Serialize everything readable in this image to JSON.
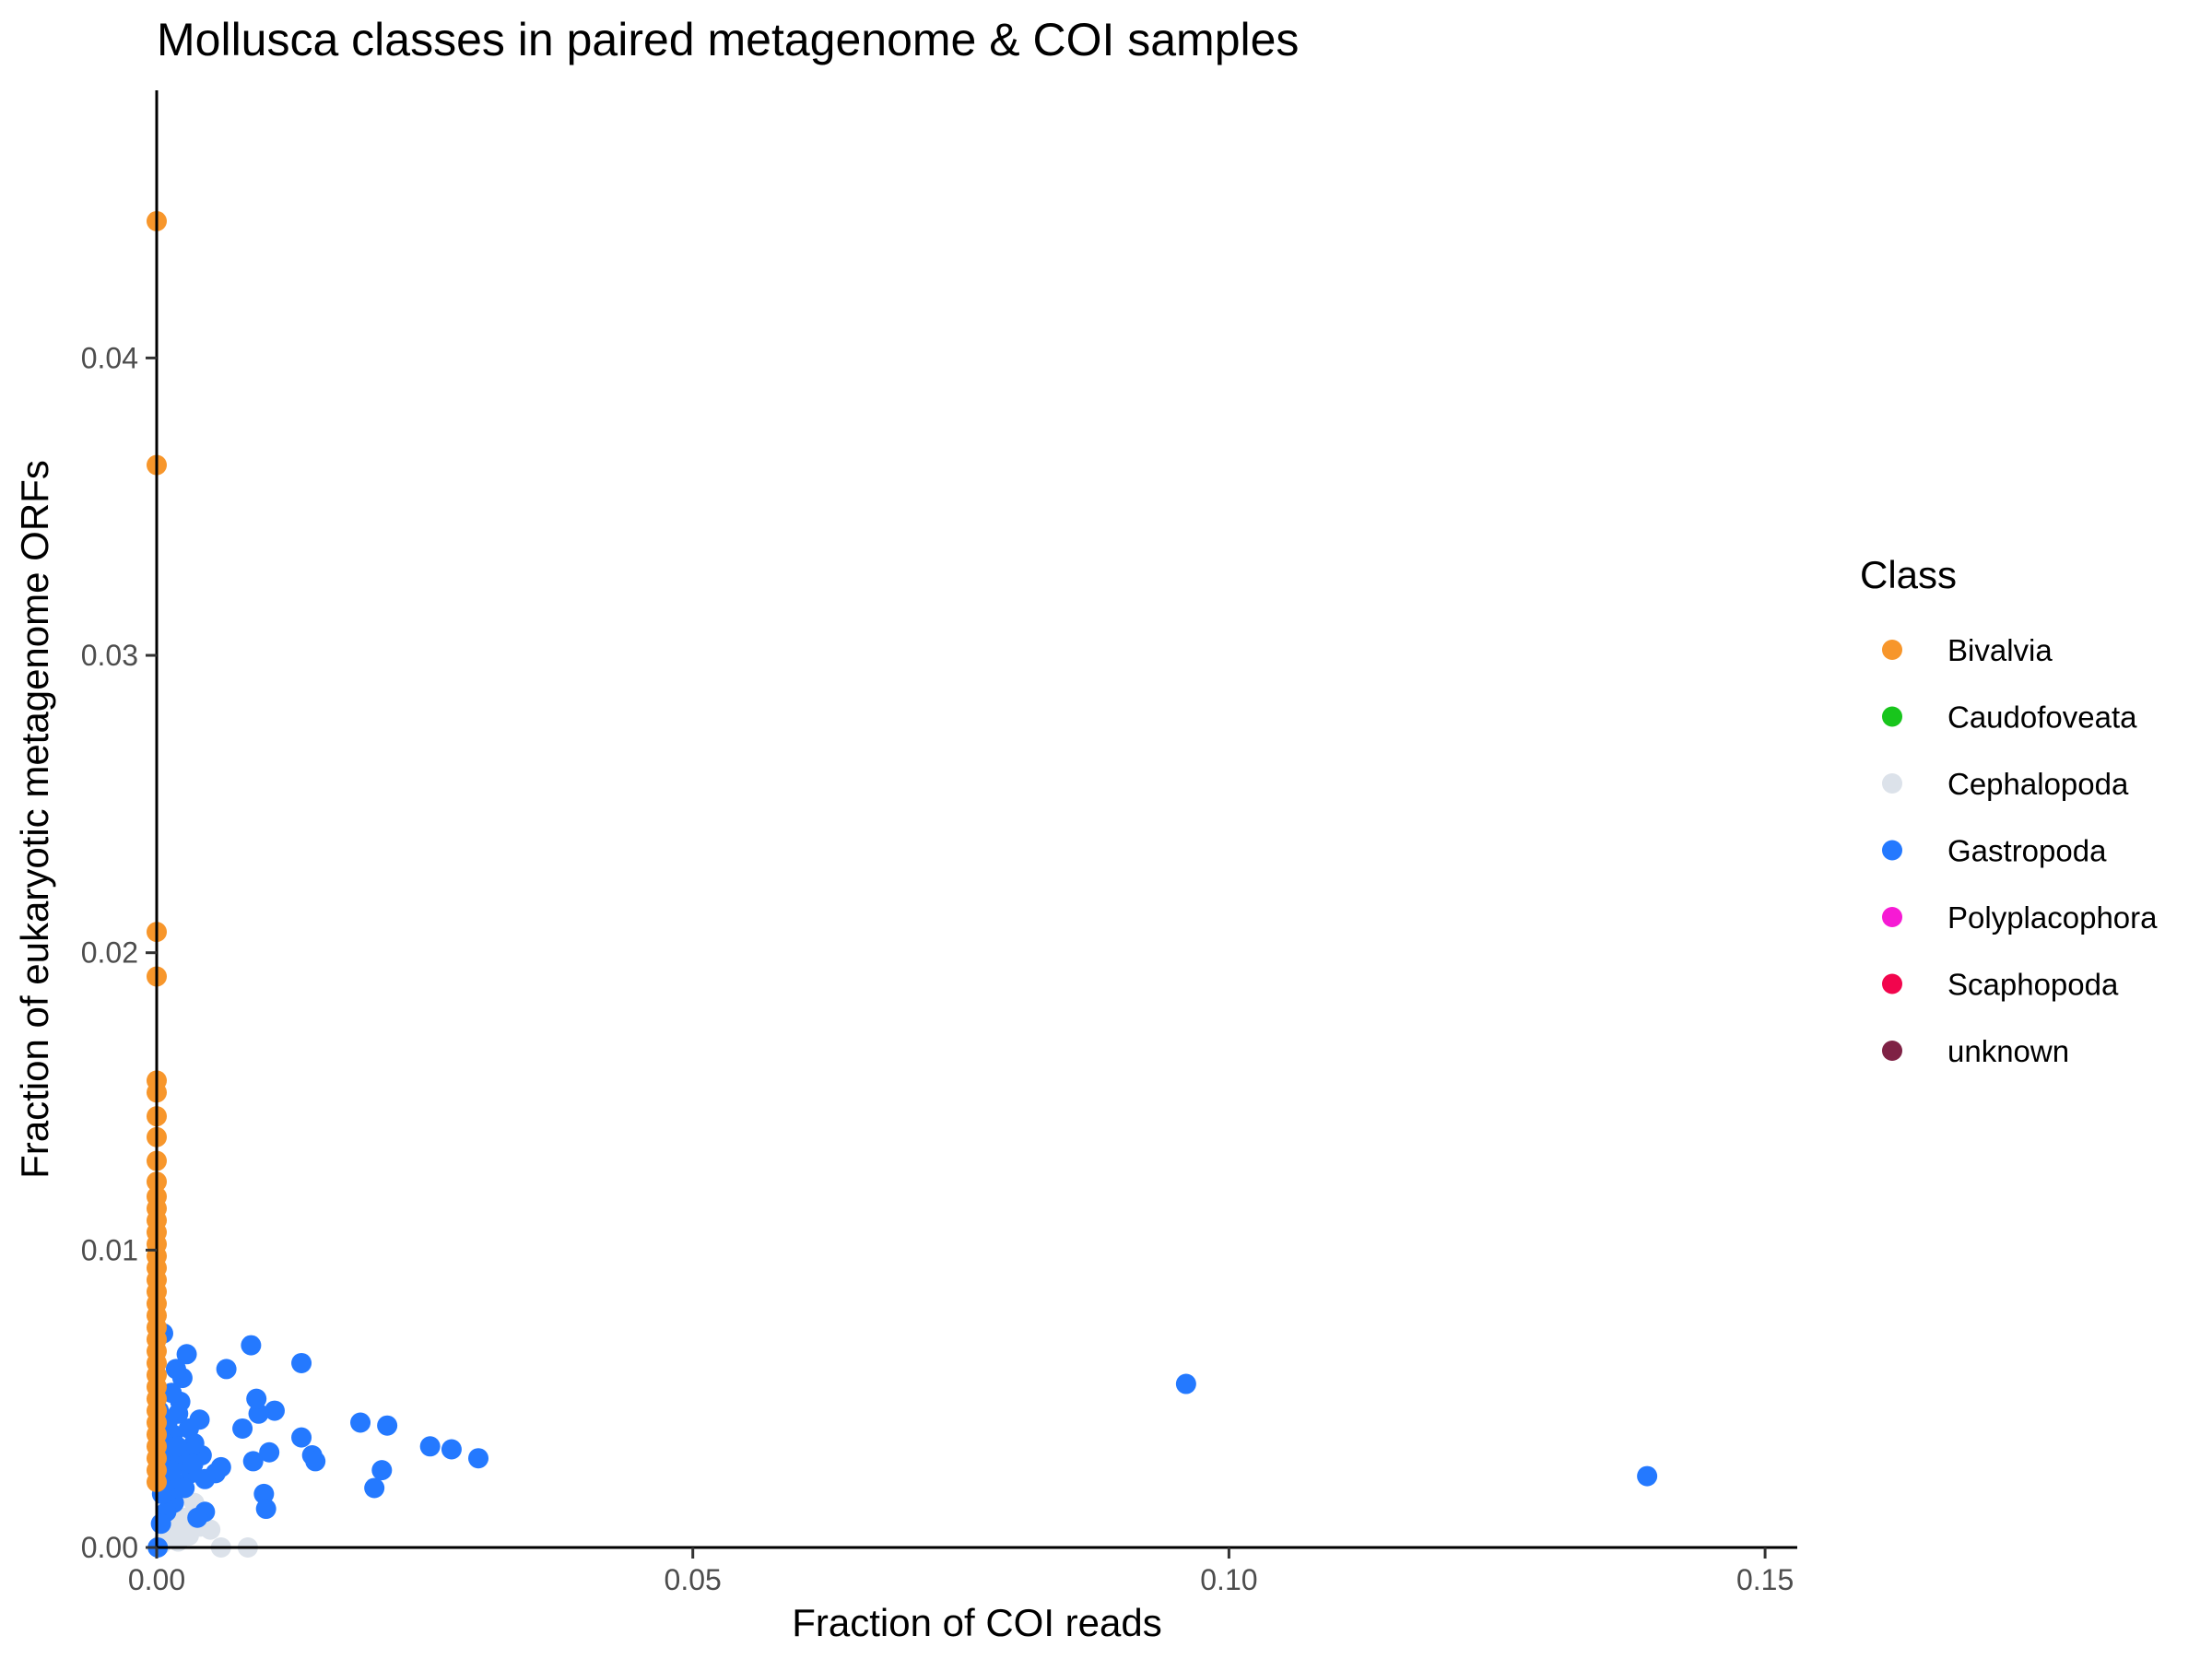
{
  "chart_data": {
    "type": "scatter",
    "title": "Mollusca classes in paired metagenome & COI samples",
    "xlabel": "Fraction of COI reads",
    "ylabel": "Fraction of eukaryotic metagenome ORFs",
    "xlim": [
      0,
      0.153
    ],
    "ylim": [
      0,
      0.049
    ],
    "x_ticks": [
      "0.00",
      "0.05",
      "0.10",
      "0.15"
    ],
    "y_ticks": [
      "0.00",
      "0.01",
      "0.02",
      "0.03",
      "0.04"
    ],
    "grid": false,
    "legend": {
      "title": "Class",
      "placement": "right",
      "entries": [
        {
          "name": "Bivalvia",
          "color": "#F7962B"
        },
        {
          "name": "Caudofoveata",
          "color": "#18C51C"
        },
        {
          "name": "Cephalopoda",
          "color": "#DCE2EA"
        },
        {
          "name": "Gastropoda",
          "color": "#2479FF"
        },
        {
          "name": "Polyplacophora",
          "color": "#F61AD4"
        },
        {
          "name": "Scaphopoda",
          "color": "#F2054D"
        },
        {
          "name": "unknown",
          "color": "#7F2245"
        }
      ]
    },
    "series": [
      {
        "name": "Cephalopoda",
        "points": [
          [
            0.0004,
            0.0001
          ],
          [
            0.001,
            0.0003
          ],
          [
            0.0015,
            0.0006
          ],
          [
            0.002,
            0.0002
          ],
          [
            0.0025,
            0.001
          ],
          [
            0.003,
            0.0004
          ],
          [
            0.0035,
            0.0015
          ],
          [
            0.004,
            0.0007
          ],
          [
            0.005,
            0.0006
          ],
          [
            0.006,
            0.0
          ],
          [
            0.0085,
            0.0
          ],
          [
            0.0012,
            0.0012
          ],
          [
            0.0022,
            0.0018
          ],
          [
            0.0008,
            0.0005
          ]
        ]
      },
      {
        "name": "Gastropoda",
        "points": [
          [
            0.139,
            0.0024
          ],
          [
            0.096,
            0.0055
          ],
          [
            0.03,
            0.003
          ],
          [
            0.0275,
            0.0033
          ],
          [
            0.0255,
            0.0034
          ],
          [
            0.0215,
            0.0041
          ],
          [
            0.021,
            0.0026
          ],
          [
            0.019,
            0.0042
          ],
          [
            0.0203,
            0.002
          ],
          [
            0.0145,
            0.0031
          ],
          [
            0.0148,
            0.0029
          ],
          [
            0.0135,
            0.0037
          ],
          [
            0.0135,
            0.0062
          ],
          [
            0.011,
            0.0046
          ],
          [
            0.0105,
            0.0032
          ],
          [
            0.01,
            0.0018
          ],
          [
            0.0102,
            0.0013
          ],
          [
            0.0095,
            0.0045
          ],
          [
            0.0093,
            0.005
          ],
          [
            0.0088,
            0.0068
          ],
          [
            0.009,
            0.0029
          ],
          [
            0.008,
            0.004
          ],
          [
            0.0065,
            0.006
          ],
          [
            0.006,
            0.0027
          ],
          [
            0.0055,
            0.0025
          ],
          [
            0.0045,
            0.0023
          ],
          [
            0.0045,
            0.0012
          ],
          [
            0.0042,
            0.0031
          ],
          [
            0.004,
            0.0043
          ],
          [
            0.0038,
            0.001
          ],
          [
            0.0035,
            0.0035
          ],
          [
            0.0032,
            0.0025
          ],
          [
            0.003,
            0.004
          ],
          [
            0.0028,
            0.0065
          ],
          [
            0.0025,
            0.0032
          ],
          [
            0.0024,
            0.0057
          ],
          [
            0.0022,
            0.0049
          ],
          [
            0.002,
            0.0045
          ],
          [
            0.002,
            0.0028
          ],
          [
            0.0018,
            0.006
          ],
          [
            0.0017,
            0.0022
          ],
          [
            0.0016,
            0.0015
          ],
          [
            0.0015,
            0.0038
          ],
          [
            0.0014,
            0.0052
          ],
          [
            0.0012,
            0.003
          ],
          [
            0.0011,
            0.0019
          ],
          [
            0.001,
            0.0042
          ],
          [
            0.0009,
            0.0012
          ],
          [
            0.0008,
            0.0035
          ],
          [
            0.0007,
            0.0025
          ],
          [
            0.0006,
            0.0072
          ],
          [
            0.0005,
            0.0018
          ],
          [
            0.0004,
            0.0008
          ],
          [
            0.0003,
            0.003
          ],
          [
            0.0002,
            0.0046
          ],
          [
            0.0001,
            0.0
          ],
          [
            0.0026,
            0.002
          ],
          [
            0.0034,
            0.0028
          ],
          [
            0.0019,
            0.0034
          ],
          [
            0.0013,
            0.0026
          ]
        ]
      },
      {
        "name": "Bivalvia",
        "points": [
          [
            0.0,
            0.0446
          ],
          [
            0.0,
            0.0364
          ],
          [
            0.0,
            0.0207
          ],
          [
            0.0,
            0.0192
          ],
          [
            0.0,
            0.0157
          ],
          [
            0.0,
            0.0153
          ],
          [
            0.0,
            0.0145
          ],
          [
            0.0,
            0.0138
          ],
          [
            0.0,
            0.013
          ],
          [
            0.0,
            0.0123
          ],
          [
            0.0,
            0.0118
          ],
          [
            0.0,
            0.0114
          ],
          [
            0.0,
            0.011
          ],
          [
            0.0,
            0.0106
          ],
          [
            0.0,
            0.0102
          ],
          [
            0.0,
            0.0098
          ],
          [
            0.0,
            0.0094
          ],
          [
            0.0,
            0.009
          ],
          [
            0.0,
            0.0086
          ],
          [
            0.0,
            0.0082
          ],
          [
            0.0,
            0.0078
          ],
          [
            0.0,
            0.0074
          ],
          [
            0.0,
            0.007
          ],
          [
            0.0,
            0.0066
          ],
          [
            0.0,
            0.0062
          ],
          [
            0.0,
            0.0058
          ],
          [
            0.0,
            0.0054
          ],
          [
            0.0,
            0.005
          ],
          [
            0.0,
            0.0046
          ],
          [
            0.0,
            0.0042
          ],
          [
            0.0,
            0.0038
          ],
          [
            0.0,
            0.0034
          ],
          [
            0.0,
            0.003
          ],
          [
            0.0,
            0.0026
          ],
          [
            0.0,
            0.0022
          ]
        ]
      }
    ]
  }
}
